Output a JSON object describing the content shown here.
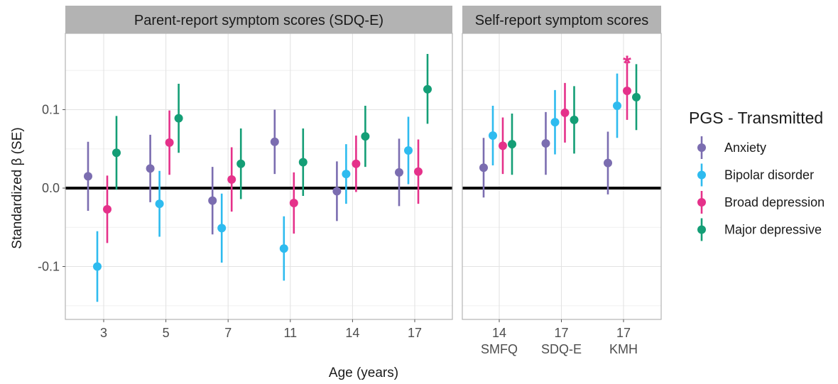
{
  "chart_data": {
    "type": "scatter",
    "ylabel": "Standardized β (SE)",
    "xlabel": "Age (years)",
    "ylim": [
      -0.165,
      0.185
    ],
    "y_ticks": [
      -0.1,
      0.0,
      0.1
    ],
    "y_tick_labels": [
      "-0.1",
      "0.0",
      "0.1"
    ],
    "grid": true,
    "reference_line_y": 0,
    "legend": {
      "title": "PGS - Transmitted",
      "placement": "right"
    },
    "series": [
      {
        "name": "Anxiety",
        "color": "#7B6DB0"
      },
      {
        "name": "Bipolar disorder",
        "color": "#2EBBEF"
      },
      {
        "name": "Broad depression",
        "color": "#E5318A"
      },
      {
        "name": "Major depressive",
        "color": "#149E76"
      }
    ],
    "panels": [
      {
        "title": "Parent-report symptom scores (SDQ-E)",
        "categories": [
          "3",
          "5",
          "7",
          "11",
          "14",
          "17"
        ],
        "category_sublabels": [
          "",
          "",
          "",
          "",
          "",
          ""
        ],
        "series_values": [
          {
            "estimate": [
              0.015,
              0.025,
              -0.016,
              0.059,
              -0.004,
              0.02
            ],
            "lower": [
              -0.029,
              -0.018,
              -0.059,
              0.018,
              -0.042,
              -0.023
            ],
            "upper": [
              0.059,
              0.068,
              0.027,
              0.1,
              0.034,
              0.063
            ]
          },
          {
            "estimate": [
              -0.1,
              -0.02,
              -0.051,
              -0.077,
              0.018,
              0.048
            ],
            "lower": [
              -0.145,
              -0.062,
              -0.095,
              -0.118,
              -0.02,
              0.005
            ],
            "upper": [
              -0.055,
              0.022,
              -0.007,
              -0.036,
              0.056,
              0.091
            ]
          },
          {
            "estimate": [
              -0.027,
              0.058,
              0.011,
              -0.019,
              0.031,
              0.021
            ],
            "lower": [
              -0.07,
              0.017,
              -0.03,
              -0.058,
              -0.005,
              -0.02
            ],
            "upper": [
              0.016,
              0.099,
              0.052,
              0.02,
              0.067,
              0.062
            ]
          },
          {
            "estimate": [
              0.045,
              0.089,
              0.031,
              0.033,
              0.066,
              0.126
            ],
            "lower": [
              -0.002,
              0.045,
              -0.014,
              -0.01,
              0.027,
              0.082
            ],
            "upper": [
              0.092,
              0.133,
              0.076,
              0.076,
              0.105,
              0.171
            ]
          }
        ]
      },
      {
        "title": "Self-report symptom scores",
        "categories": [
          "14",
          "17",
          "17"
        ],
        "category_sublabels": [
          "SMFQ",
          "SDQ-E",
          "KMH"
        ],
        "series_values": [
          {
            "estimate": [
              0.026,
              0.057,
              0.032
            ],
            "lower": [
              -0.012,
              0.017,
              -0.008
            ],
            "upper": [
              0.064,
              0.097,
              0.072
            ]
          },
          {
            "estimate": [
              0.067,
              0.084,
              0.105
            ],
            "lower": [
              0.029,
              0.043,
              0.064
            ],
            "upper": [
              0.105,
              0.125,
              0.146
            ]
          },
          {
            "estimate": [
              0.054,
              0.096,
              0.124
            ],
            "lower": [
              0.018,
              0.058,
              0.087
            ],
            "upper": [
              0.09,
              0.134,
              0.161
            ]
          },
          {
            "estimate": [
              0.056,
              0.087,
              0.116
            ],
            "lower": [
              0.017,
              0.044,
              0.074
            ],
            "upper": [
              0.095,
              0.13,
              0.158
            ]
          }
        ]
      }
    ],
    "annotations": [
      {
        "text": "*",
        "panel": 1,
        "category_index": 2,
        "series": "Broad depression"
      }
    ]
  }
}
